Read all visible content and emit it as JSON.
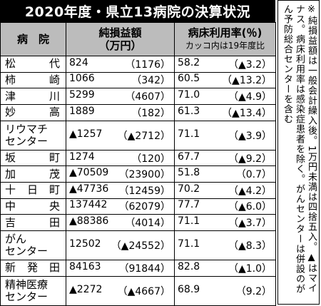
{
  "title": "2020年度・県立13病院の決算状況",
  "headers": {
    "hospital": "病　院",
    "net_profit": "純損益額",
    "net_profit_unit": "（万円）",
    "occupancy": "病床利用率(％)",
    "occupancy_note": "カッコ内は19年度比"
  },
  "rows": [
    {
      "name": "松　代",
      "profit": "824",
      "profit_prev": "（1176）",
      "rate": "58.2",
      "rate_diff": "（▲3.2）"
    },
    {
      "name": "柿　崎",
      "profit": "1066",
      "profit_prev": "（342）",
      "rate": "60.5",
      "rate_diff": "（▲13.2）"
    },
    {
      "name": "津　川",
      "profit": "5299",
      "profit_prev": "（4607）",
      "rate": "71.0",
      "rate_diff": "（▲4.9）"
    },
    {
      "name": "妙　高",
      "profit": "1889",
      "profit_prev": "（182）",
      "rate": "61.3",
      "rate_diff": "（▲13.4）"
    },
    {
      "name": "リウマチ\nセンター",
      "profit": "▲1257",
      "profit_prev": "（▲2712）",
      "rate": "71.1",
      "rate_diff": "（▲3.9）"
    },
    {
      "name": "坂　町",
      "profit": "1274",
      "profit_prev": "（120）",
      "rate": "67.7",
      "rate_diff": "（▲9.2）"
    },
    {
      "name": "加　茂",
      "profit": "▲70509",
      "profit_prev": "（23900）",
      "rate": "51.8",
      "rate_diff": "（0.7）"
    },
    {
      "name": "十日町",
      "profit": "▲47736",
      "profit_prev": "（12459）",
      "rate": "70.2",
      "rate_diff": "（▲4.2）"
    },
    {
      "name": "中　央",
      "profit": "137442",
      "profit_prev": "（62079）",
      "rate": "77.7",
      "rate_diff": "（▲6.0）"
    },
    {
      "name": "吉　田",
      "profit": "▲88386",
      "profit_prev": "（4014）",
      "rate": "71.1",
      "rate_diff": "（▲3.7）"
    },
    {
      "name": "がん\nセンター",
      "profit": "12502",
      "profit_prev": "（▲24552）",
      "rate": "71.1",
      "rate_diff": "（▲8.3）"
    },
    {
      "name": "新発田",
      "profit": "84163",
      "profit_prev": "（91844）",
      "rate": "82.8",
      "rate_diff": "（▲1.0）"
    },
    {
      "name": "精神医療\nセンター",
      "profit": "▲2272",
      "profit_prev": "（▲4667）",
      "rate": "68.9",
      "rate_diff": "（9.2）"
    }
  ],
  "note": "※純損益額は一般会計繰入後。1万円未満は四捨五入。▲はマイナス。病床利用率は感染症患者を除く。がんセンターは併設のがん予防総合センターを含む"
}
